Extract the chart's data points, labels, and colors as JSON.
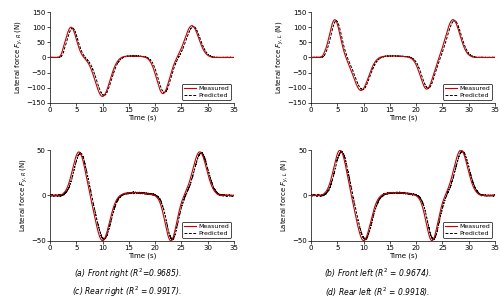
{
  "figsize": [
    5.0,
    3.01
  ],
  "dpi": 100,
  "subplots": [
    {
      "label": "(a) Front right ($R^2$=0.9685).",
      "ylabel": "Lateral force $F_{y,R}$ (N)",
      "ylim": [
        -150,
        150
      ],
      "yticks": [
        -150,
        -100,
        -50,
        0,
        50,
        100,
        150
      ],
      "xlim": [
        0,
        35
      ],
      "xticks": [
        0,
        5,
        10,
        15,
        20,
        25,
        30,
        35
      ],
      "shape": "front_right"
    },
    {
      "label": "(b) Front left ($R^2$ = 0.9674).",
      "ylabel": "Lateral force $F_{y,L}$ (N)",
      "ylim": [
        -150,
        150
      ],
      "yticks": [
        -150,
        -100,
        -50,
        0,
        50,
        100,
        150
      ],
      "xlim": [
        0,
        35
      ],
      "xticks": [
        0,
        5,
        10,
        15,
        20,
        25,
        30,
        35
      ],
      "shape": "front_left"
    },
    {
      "label": "(c) Rear right ($R^2$ = 0.9917).",
      "ylabel": "Lateral force $F_{y,R}$ (N)",
      "ylim": [
        -50,
        50
      ],
      "yticks": [
        -50,
        0,
        50
      ],
      "xlim": [
        0,
        35
      ],
      "xticks": [
        0,
        5,
        10,
        15,
        20,
        25,
        30,
        35
      ],
      "shape": "rear_right"
    },
    {
      "label": "(d) Rear left ($R^2$ = 0.9918).",
      "ylabel": "Lateral force $F_{y,L}$ (N)",
      "ylim": [
        -50,
        50
      ],
      "yticks": [
        -50,
        0,
        50
      ],
      "xlim": [
        0,
        35
      ],
      "xticks": [
        0,
        5,
        10,
        15,
        20,
        25,
        30,
        35
      ],
      "shape": "rear_left"
    }
  ],
  "measured_color": "#cc0000",
  "predicted_color": "#000000",
  "measured_lw": 0.8,
  "predicted_lw": 0.7,
  "fontsize_label": 5,
  "fontsize_tick": 5,
  "fontsize_caption": 5.5,
  "fontsize_legend": 4.5
}
